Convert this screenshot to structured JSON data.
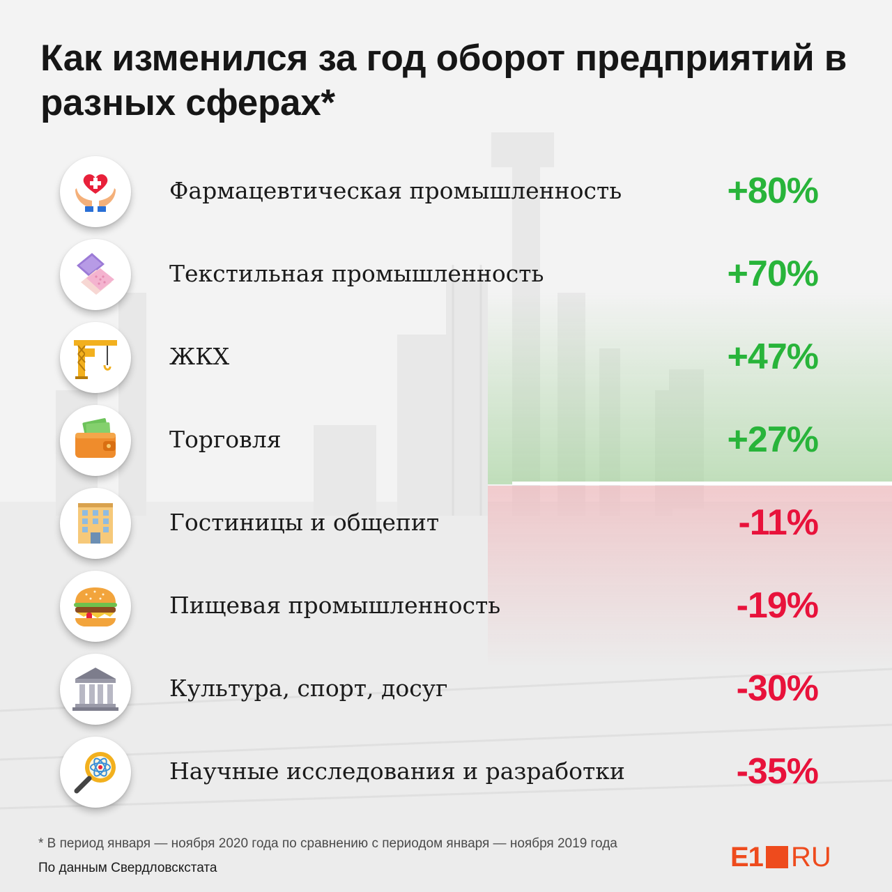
{
  "title": "Как изменился за год оборот предприятий в разных сферах*",
  "colors": {
    "positive": "#28b43a",
    "negative": "#e8123b",
    "brand": "#ee4b1d"
  },
  "items": [
    {
      "label": "Фармацевтическая промышленность",
      "value": "+80%",
      "trend": "positive",
      "icon": "heart-hands-icon"
    },
    {
      "label": "Текстильная промышленность",
      "value": "+70%",
      "trend": "positive",
      "icon": "fabric-icon"
    },
    {
      "label": "ЖКХ",
      "value": "+47%",
      "trend": "positive",
      "icon": "crane-icon"
    },
    {
      "label": "Торговля",
      "value": "+27%",
      "trend": "positive",
      "icon": "wallet-icon"
    },
    {
      "label": "Гостиницы и общепит",
      "value": "-11%",
      "trend": "negative",
      "icon": "hotel-icon"
    },
    {
      "label": "Пищевая промышленность",
      "value": "-19%",
      "trend": "negative",
      "icon": "burger-icon"
    },
    {
      "label": "Культура, спорт, досуг",
      "value": "-30%",
      "trend": "negative",
      "icon": "museum-icon"
    },
    {
      "label": "Научные исследования и разработки",
      "value": "-35%",
      "trend": "negative",
      "icon": "research-icon"
    }
  ],
  "footnote": "* В период января — ноября 2020 года по сравнению с периодом января — ноября 2019 года",
  "source": "По данным Свердловскстата",
  "logo": {
    "left": "E1",
    "right": "RU"
  }
}
